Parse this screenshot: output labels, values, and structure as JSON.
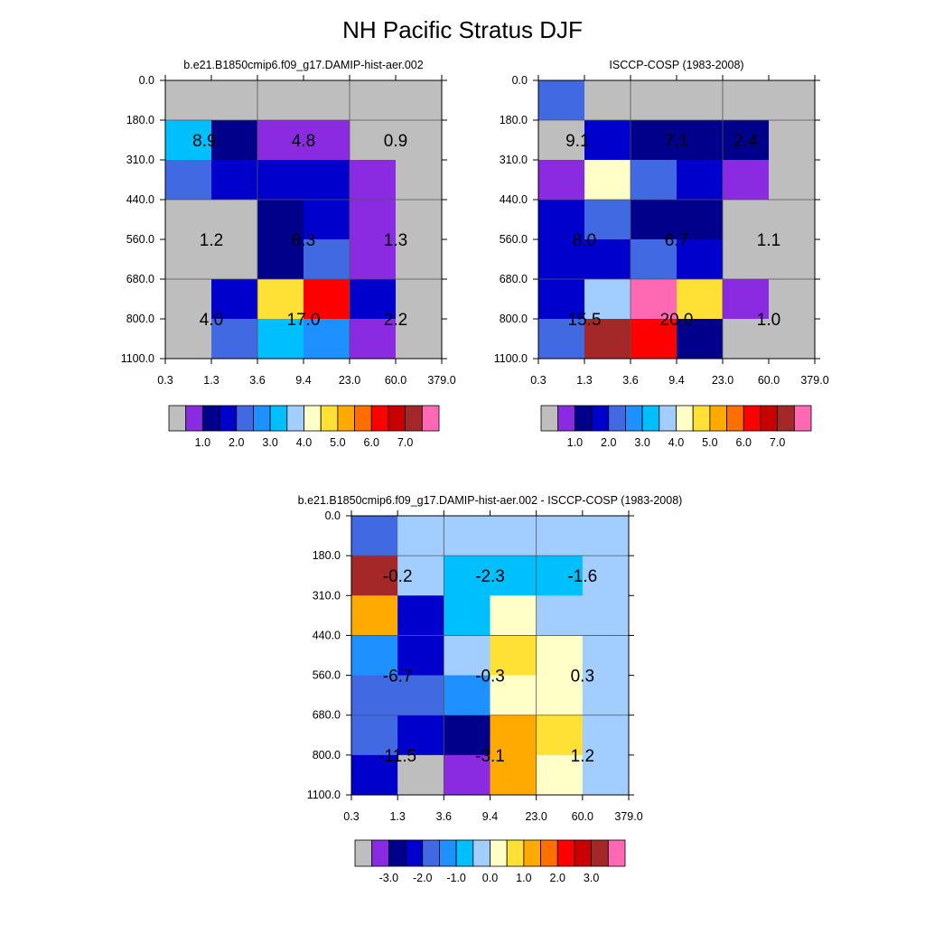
{
  "figure": {
    "title": "NH Pacific Stratus DJF"
  },
  "colors": {
    "grey": "#bebebe",
    "c1": "#8a2be2",
    "c2": "#00008b",
    "c3": "#0000cd",
    "c4": "#4169e1",
    "c5": "#1e90ff",
    "c6": "#00bfff",
    "c7": "#a2cdff",
    "c8": "#ffffc8",
    "c9": "#ffe135",
    "c10": "#ffaa00",
    "c11": "#ff6f00",
    "c12": "#ff0000",
    "c13": "#c80000",
    "c14": "#a52828",
    "c15": "#ff69b4"
  },
  "chart_data": [
    {
      "type": "heatmap",
      "title": "b.e21.B1850cmip6.f09_g17.DAMIP-hist-aer.002",
      "xticks": [
        "0.3",
        "1.3",
        "3.6",
        "9.4",
        "23.0",
        "60.0",
        "379.0"
      ],
      "yticks": [
        "0.0",
        "180.0",
        "310.0",
        "440.0",
        "560.0",
        "680.0",
        "800.0",
        "1100.0"
      ],
      "colorbar": {
        "colors": [
          "grey",
          "c1",
          "c2",
          "c3",
          "c4",
          "c5",
          "c6",
          "c7",
          "c8",
          "c9",
          "c10",
          "c11",
          "c12",
          "c13",
          "c14",
          "c15"
        ],
        "labels": [
          "1.0",
          "2.0",
          "3.0",
          "4.0",
          "5.0",
          "6.0",
          "7.0"
        ]
      },
      "cells": [
        [
          "grey",
          "grey",
          "grey",
          "grey",
          "grey",
          "grey"
        ],
        [
          "c6",
          "c2",
          "c1",
          "c1",
          "grey",
          "grey"
        ],
        [
          "c4",
          "c3",
          "c3",
          "c3",
          "c1",
          "grey"
        ],
        [
          "grey",
          "grey",
          "c2",
          "c3",
          "c1",
          "grey"
        ],
        [
          "grey",
          "grey",
          "c2",
          "c4",
          "c1",
          "grey"
        ],
        [
          "grey",
          "c3",
          "c9",
          "c12",
          "c3",
          "grey"
        ],
        [
          "grey",
          "c4",
          "c6",
          "c5",
          "c1",
          "grey"
        ]
      ],
      "totals": [
        {
          "value": "8.9",
          "col": 0.85,
          "row": 1.5
        },
        {
          "value": "4.8",
          "col": 3.0,
          "row": 1.5
        },
        {
          "value": "0.9",
          "col": 5.0,
          "row": 1.5
        },
        {
          "value": "1.2",
          "col": 1.0,
          "row": 4.0
        },
        {
          "value": "6.3",
          "col": 3.0,
          "row": 4.0
        },
        {
          "value": "1.3",
          "col": 5.0,
          "row": 4.0
        },
        {
          "value": "4.0",
          "col": 1.0,
          "row": 6.0
        },
        {
          "value": "17.0",
          "col": 3.0,
          "row": 6.0
        },
        {
          "value": "2.2",
          "col": 5.0,
          "row": 6.0
        }
      ]
    },
    {
      "type": "heatmap",
      "title": "ISCCP-COSP (1983-2008)",
      "xticks": [
        "0.3",
        "1.3",
        "3.6",
        "9.4",
        "23.0",
        "60.0",
        "379.0"
      ],
      "yticks": [
        "0.0",
        "180.0",
        "310.0",
        "440.0",
        "560.0",
        "680.0",
        "800.0",
        "1100.0"
      ],
      "colorbar": {
        "colors": [
          "grey",
          "c1",
          "c2",
          "c3",
          "c4",
          "c5",
          "c6",
          "c7",
          "c8",
          "c9",
          "c10",
          "c11",
          "c12",
          "c13",
          "c14",
          "c15"
        ],
        "labels": [
          "1.0",
          "2.0",
          "3.0",
          "4.0",
          "5.0",
          "6.0",
          "7.0"
        ]
      },
      "cells": [
        [
          "c4",
          "grey",
          "grey",
          "grey",
          "grey",
          "grey"
        ],
        [
          "grey",
          "c3",
          "c2",
          "c2",
          "c2",
          "grey"
        ],
        [
          "c1",
          "c8",
          "c4",
          "c3",
          "c1",
          "grey"
        ],
        [
          "c3",
          "c4",
          "c2",
          "c2",
          "grey",
          "grey"
        ],
        [
          "c3",
          "c3",
          "c4",
          "c3",
          "grey",
          "grey"
        ],
        [
          "c3",
          "c7",
          "c15",
          "c9",
          "c1",
          "grey"
        ],
        [
          "c4",
          "c14",
          "c12",
          "c2",
          "grey",
          "grey"
        ]
      ],
      "totals": [
        {
          "value": "9.1",
          "col": 0.85,
          "row": 1.5
        },
        {
          "value": "7.1",
          "col": 3.0,
          "row": 1.5
        },
        {
          "value": "2.4",
          "col": 4.5,
          "row": 1.5
        },
        {
          "value": "8.0",
          "col": 1.0,
          "row": 4.0
        },
        {
          "value": "6.7",
          "col": 3.0,
          "row": 4.0
        },
        {
          "value": "1.1",
          "col": 5.0,
          "row": 4.0
        },
        {
          "value": "15.5",
          "col": 1.0,
          "row": 6.0
        },
        {
          "value": "20.0",
          "col": 3.0,
          "row": 6.0
        },
        {
          "value": "1.0",
          "col": 5.0,
          "row": 6.0
        }
      ]
    },
    {
      "type": "heatmap",
      "title": "b.e21.B1850cmip6.f09_g17.DAMIP-hist-aer.002 - ISCCP-COSP (1983-2008)",
      "xticks": [
        "0.3",
        "1.3",
        "3.6",
        "9.4",
        "23.0",
        "60.0",
        "379.0"
      ],
      "yticks": [
        "0.0",
        "180.0",
        "310.0",
        "440.0",
        "560.0",
        "680.0",
        "800.0",
        "1100.0"
      ],
      "colorbar": {
        "colors": [
          "grey",
          "c1",
          "c2",
          "c3",
          "c4",
          "c5",
          "c6",
          "c7",
          "c8",
          "c9",
          "c10",
          "c11",
          "c12",
          "c13",
          "c14",
          "c15"
        ],
        "labels": [
          "-3.0",
          "-2.0",
          "-1.0",
          "0.0",
          "1.0",
          "2.0",
          "3.0"
        ]
      },
      "cells": [
        [
          "c4",
          "c7",
          "c7",
          "c7",
          "c7",
          "c7"
        ],
        [
          "c14",
          "c7",
          "c6",
          "c6",
          "c6",
          "c7"
        ],
        [
          "c10",
          "c3",
          "c6",
          "c8",
          "c7",
          "c7"
        ],
        [
          "c5",
          "c3",
          "c7",
          "c9",
          "c8",
          "c7"
        ],
        [
          "c4",
          "c4",
          "c5",
          "c8",
          "c8",
          "c7"
        ],
        [
          "c4",
          "c3",
          "c2",
          "c10",
          "c9",
          "c7"
        ],
        [
          "c3",
          "grey",
          "c1",
          "c10",
          "c8",
          "c7"
        ]
      ],
      "totals": [
        {
          "value": "-0.2",
          "col": 1.0,
          "row": 1.5
        },
        {
          "value": "-2.3",
          "col": 3.0,
          "row": 1.5
        },
        {
          "value": "-1.6",
          "col": 5.0,
          "row": 1.5
        },
        {
          "value": "-6.7",
          "col": 1.0,
          "row": 4.0
        },
        {
          "value": "-0.3",
          "col": 3.0,
          "row": 4.0
        },
        {
          "value": "0.3",
          "col": 5.0,
          "row": 4.0
        },
        {
          "value": "-11.5",
          "col": 1.0,
          "row": 6.0
        },
        {
          "value": "-3.1",
          "col": 3.0,
          "row": 6.0
        },
        {
          "value": "1.2",
          "col": 5.0,
          "row": 6.0
        }
      ]
    }
  ]
}
